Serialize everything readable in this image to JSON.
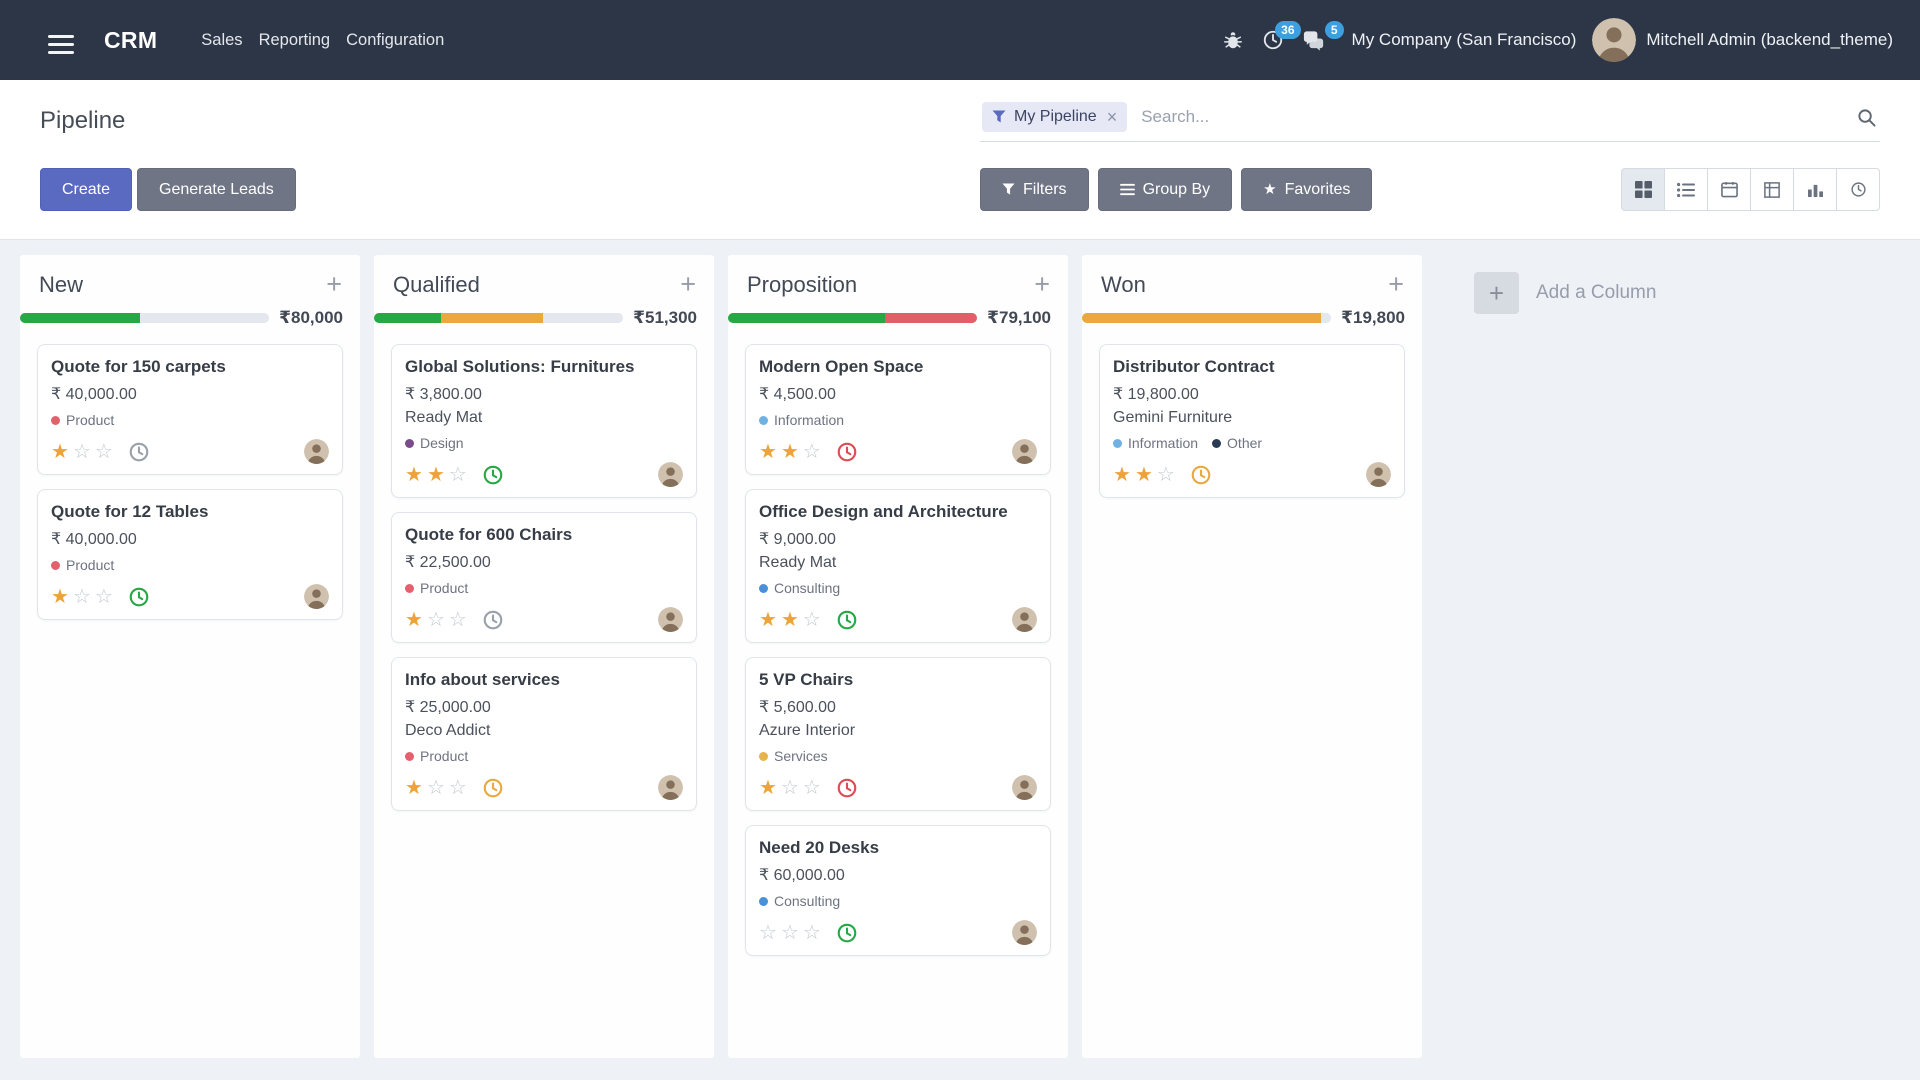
{
  "theme": {
    "primary": "#5a6ac1",
    "navbar_bg": "#2d3646",
    "badge_blue": "#3d9fdf"
  },
  "navbar": {
    "brand": "CRM",
    "menus": [
      "Sales",
      "Reporting",
      "Configuration"
    ],
    "activity_badge": "36",
    "message_badge": "5",
    "company": "My Company (San Francisco)",
    "user": "Mitchell Admin (backend_theme)"
  },
  "control_panel": {
    "title": "Pipeline",
    "search": {
      "facet_label": "My Pipeline",
      "placeholder": "Search..."
    },
    "create_label": "Create",
    "generate_leads_label": "Generate Leads",
    "filters_label": "Filters",
    "group_by_label": "Group By",
    "favorites_label": "Favorites"
  },
  "board": {
    "add_column_label": "Add a Column",
    "columns": [
      {
        "name": "New",
        "amount": "₹80,000",
        "progress": [
          {
            "color": "#28a745",
            "pct": 48
          },
          {
            "color": "#e4e7ed",
            "pct": 52
          }
        ],
        "cards": [
          {
            "title": "Quote for 150 carpets",
            "amount": "₹ 40,000.00",
            "tags": [
              {
                "label": "Product",
                "color": "#e4606d"
              }
            ],
            "stars": 1,
            "activity_color": "#9aa0aa"
          },
          {
            "title": "Quote for 12 Tables",
            "amount": "₹ 40,000.00",
            "tags": [
              {
                "label": "Product",
                "color": "#e4606d"
              }
            ],
            "stars": 1,
            "activity_color": "#28a745"
          }
        ]
      },
      {
        "name": "Qualified",
        "amount": "₹51,300",
        "progress": [
          {
            "color": "#28a745",
            "pct": 27
          },
          {
            "color": "#eaa93c",
            "pct": 41
          },
          {
            "color": "#e4e7ed",
            "pct": 32
          }
        ],
        "cards": [
          {
            "title": "Global Solutions: Furnitures",
            "amount": "₹ 3,800.00",
            "partner": "Ready Mat",
            "tags": [
              {
                "label": "Design",
                "color": "#7a4a8b"
              }
            ],
            "stars": 2,
            "activity_color": "#28a745"
          },
          {
            "title": "Quote for 600 Chairs",
            "amount": "₹ 22,500.00",
            "tags": [
              {
                "label": "Product",
                "color": "#e4606d"
              }
            ],
            "stars": 1,
            "activity_color": "#9aa0aa"
          },
          {
            "title": "Info about services",
            "amount": "₹ 25,000.00",
            "partner": "Deco Addict",
            "tags": [
              {
                "label": "Product",
                "color": "#e4606d"
              }
            ],
            "stars": 1,
            "activity_color": "#eaa93c"
          }
        ]
      },
      {
        "name": "Proposition",
        "amount": "₹79,100",
        "progress": [
          {
            "color": "#28a745",
            "pct": 63
          },
          {
            "color": "#e25f67",
            "pct": 37
          }
        ],
        "cards": [
          {
            "title": "Modern Open Space",
            "amount": "₹ 4,500.00",
            "tags": [
              {
                "label": "Information",
                "color": "#6fb1e2"
              }
            ],
            "stars": 2,
            "activity_color": "#dc4c52"
          },
          {
            "title": "Office Design and Architecture",
            "amount": "₹ 9,000.00",
            "partner": "Ready Mat",
            "tags": [
              {
                "label": "Consulting",
                "color": "#4a90d9"
              }
            ],
            "stars": 2,
            "activity_color": "#28a745"
          },
          {
            "title": "5 VP Chairs",
            "amount": "₹ 5,600.00",
            "partner": "Azure Interior",
            "tags": [
              {
                "label": "Services",
                "color": "#e7b34c"
              }
            ],
            "stars": 1,
            "activity_color": "#dc4c52"
          },
          {
            "title": "Need 20 Desks",
            "amount": "₹ 60,000.00",
            "tags": [
              {
                "label": "Consulting",
                "color": "#4a90d9"
              }
            ],
            "stars": 0,
            "activity_color": "#28a745"
          }
        ]
      },
      {
        "name": "Won",
        "amount": "₹19,800",
        "progress": [
          {
            "color": "#eaa93c",
            "pct": 96
          },
          {
            "color": "#e4e7ed",
            "pct": 4
          }
        ],
        "cards": [
          {
            "title": "Distributor Contract",
            "amount": "₹ 19,800.00",
            "partner": "Gemini Furniture",
            "tags": [
              {
                "label": "Information",
                "color": "#6fb1e2"
              },
              {
                "label": "Other",
                "color": "#2b3a55"
              }
            ],
            "stars": 2,
            "activity_color": "#eaa93c"
          }
        ]
      }
    ]
  }
}
